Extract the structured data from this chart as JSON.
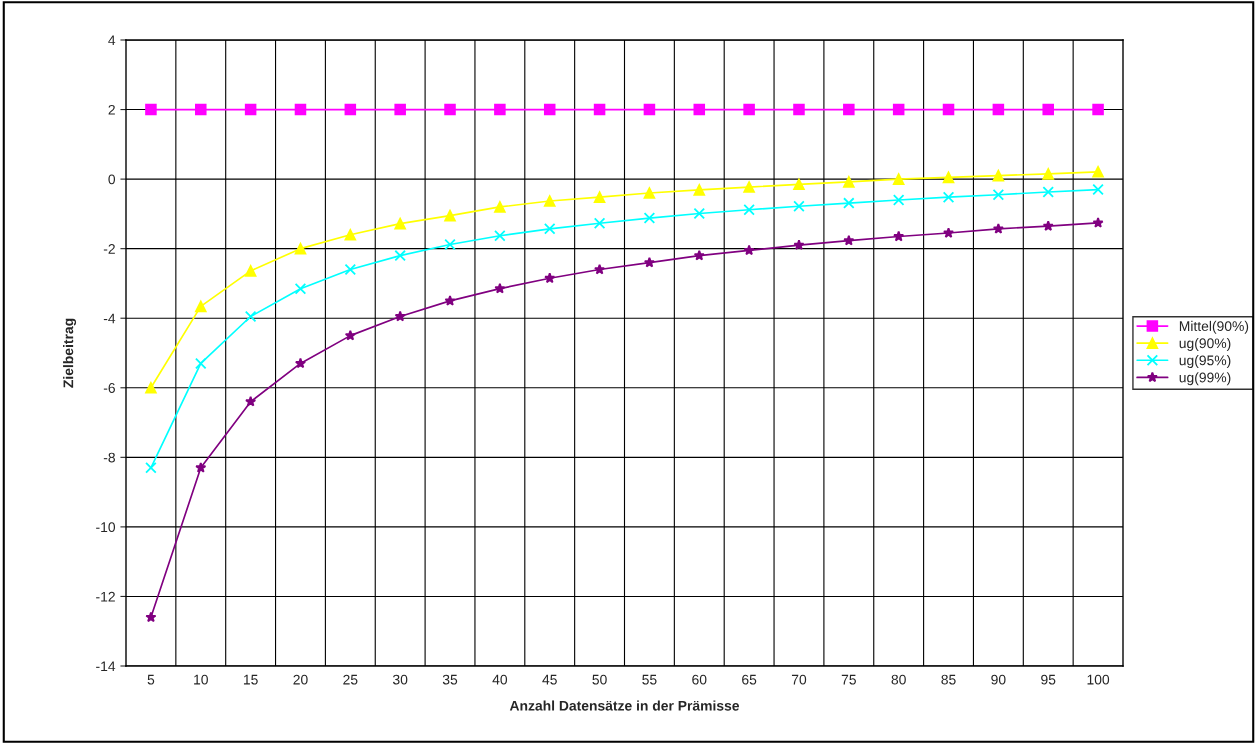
{
  "chart_data": {
    "type": "line",
    "xlabel": "Anzahl Datensätze in der Prämisse",
    "ylabel": "Zielbeitrag",
    "categories": [
      "5",
      "10",
      "15",
      "20",
      "25",
      "30",
      "35",
      "40",
      "45",
      "50",
      "55",
      "60",
      "65",
      "70",
      "75",
      "80",
      "85",
      "90",
      "95",
      "100"
    ],
    "series": [
      {
        "name": "Mittel(90%)",
        "color": "#ff00ff",
        "marker": "square",
        "values": [
          2,
          2,
          2,
          2,
          2,
          2,
          2,
          2,
          2,
          2,
          2,
          2,
          2,
          2,
          2,
          2,
          2,
          2,
          2,
          2
        ]
      },
      {
        "name": "ug(90%)",
        "color": "#ffff00",
        "marker": "triangle",
        "values": [
          -6.0,
          -3.66,
          -2.64,
          -2.0,
          -1.6,
          -1.28,
          -1.05,
          -0.8,
          -0.63,
          -0.52,
          -0.4,
          -0.31,
          -0.23,
          -0.15,
          -0.08,
          0.0,
          0.05,
          0.1,
          0.15,
          0.21
        ]
      },
      {
        "name": "ug(95%)",
        "color": "#00ffff",
        "marker": "cross",
        "values": [
          -8.3,
          -5.3,
          -3.95,
          -3.15,
          -2.6,
          -2.2,
          -1.88,
          -1.63,
          -1.43,
          -1.27,
          -1.12,
          -0.99,
          -0.88,
          -0.78,
          -0.69,
          -0.6,
          -0.52,
          -0.45,
          -0.37,
          -0.3
        ]
      },
      {
        "name": "ug(99%)",
        "color": "#800080",
        "marker": "star",
        "values": [
          -12.6,
          -8.3,
          -6.4,
          -5.3,
          -4.5,
          -3.95,
          -3.5,
          -3.15,
          -2.85,
          -2.6,
          -2.4,
          -2.2,
          -2.05,
          -1.9,
          -1.77,
          -1.65,
          -1.55,
          -1.43,
          -1.35,
          -1.26
        ]
      }
    ],
    "ylim": [
      -14,
      4
    ],
    "yticks": [
      -14,
      -12,
      -10,
      -8,
      -6,
      -4,
      -2,
      0,
      2,
      4
    ],
    "grid": true,
    "legend": "right",
    "line_style": "solid"
  }
}
